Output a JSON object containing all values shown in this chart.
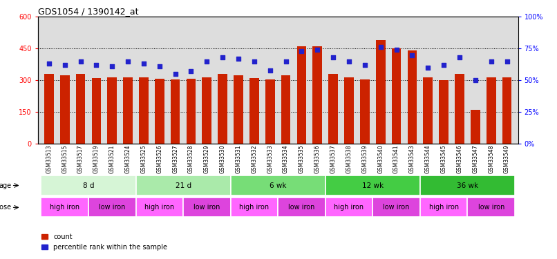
{
  "title": "GDS1054 / 1390142_at",
  "samples": [
    "GSM33513",
    "GSM33515",
    "GSM33517",
    "GSM33519",
    "GSM33521",
    "GSM33524",
    "GSM33525",
    "GSM33526",
    "GSM33527",
    "GSM33528",
    "GSM33529",
    "GSM33530",
    "GSM33531",
    "GSM33532",
    "GSM33533",
    "GSM33534",
    "GSM33535",
    "GSM33536",
    "GSM33537",
    "GSM33538",
    "GSM33539",
    "GSM33540",
    "GSM33541",
    "GSM33543",
    "GSM33544",
    "GSM33545",
    "GSM33546",
    "GSM33547",
    "GSM33548",
    "GSM33549"
  ],
  "counts": [
    330,
    325,
    330,
    310,
    315,
    315,
    315,
    308,
    305,
    308,
    315,
    330,
    325,
    310,
    305,
    325,
    460,
    460,
    330,
    315,
    305,
    490,
    450,
    440,
    315,
    300,
    330,
    160,
    315,
    315
  ],
  "percentile_ranks": [
    63,
    62,
    65,
    62,
    61,
    65,
    63,
    61,
    55,
    57,
    65,
    68,
    67,
    65,
    58,
    65,
    73,
    74,
    68,
    65,
    62,
    76,
    74,
    70,
    60,
    62,
    68,
    50,
    65,
    65
  ],
  "age_groups": [
    {
      "label": "8 d",
      "start": 0,
      "end": 6,
      "color": "#d6f5d6"
    },
    {
      "label": "21 d",
      "start": 6,
      "end": 12,
      "color": "#aaeaaa"
    },
    {
      "label": "6 wk",
      "start": 12,
      "end": 18,
      "color": "#77dd77"
    },
    {
      "label": "12 wk",
      "start": 18,
      "end": 24,
      "color": "#44cc44"
    },
    {
      "label": "36 wk",
      "start": 24,
      "end": 30,
      "color": "#33bb33"
    }
  ],
  "dose_groups": [
    {
      "label": "high iron",
      "start": 0,
      "end": 3,
      "color": "#ff66ff"
    },
    {
      "label": "low iron",
      "start": 3,
      "end": 6,
      "color": "#dd44dd"
    },
    {
      "label": "high iron",
      "start": 6,
      "end": 9,
      "color": "#ff66ff"
    },
    {
      "label": "low iron",
      "start": 9,
      "end": 12,
      "color": "#dd44dd"
    },
    {
      "label": "high iron",
      "start": 12,
      "end": 15,
      "color": "#ff66ff"
    },
    {
      "label": "low iron",
      "start": 15,
      "end": 18,
      "color": "#dd44dd"
    },
    {
      "label": "high iron",
      "start": 18,
      "end": 21,
      "color": "#ff66ff"
    },
    {
      "label": "low iron",
      "start": 21,
      "end": 24,
      "color": "#dd44dd"
    },
    {
      "label": "high iron",
      "start": 24,
      "end": 27,
      "color": "#ff66ff"
    },
    {
      "label": "low iron",
      "start": 27,
      "end": 30,
      "color": "#dd44dd"
    }
  ],
  "bar_color": "#cc2200",
  "dot_color": "#2222cc",
  "ylim_left": [
    0,
    600
  ],
  "ylim_right": [
    0,
    100
  ],
  "yticks_left": [
    0,
    150,
    300,
    450,
    600
  ],
  "yticks_right": [
    0,
    25,
    50,
    75,
    100
  ],
  "background_color": "#ffffff",
  "plot_bg_color": "#dddddd"
}
